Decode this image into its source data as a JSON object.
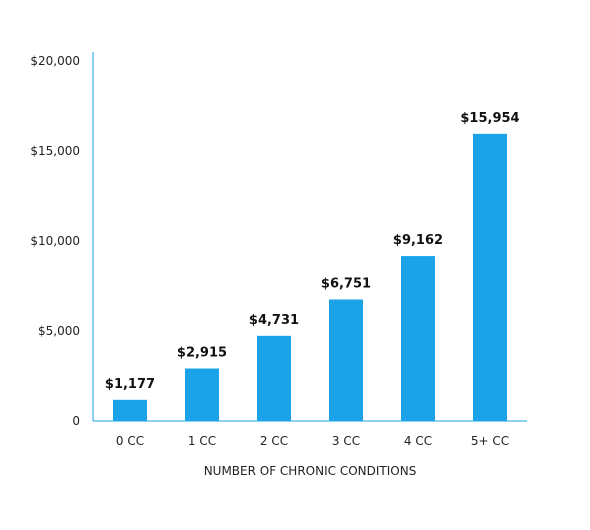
{
  "chart_data": {
    "type": "bar",
    "title": "",
    "xlabel": "NUMBER OF CHRONIC CONDITIONS",
    "ylabel": "",
    "categories": [
      "0 CC",
      "1 CC",
      "2 CC",
      "3 CC",
      "4 CC",
      "5+ CC"
    ],
    "values": [
      1177,
      2915,
      4731,
      6751,
      9162,
      15954
    ],
    "value_labels": [
      "$1,177",
      "$2,915",
      "$4,731",
      "$6,751",
      "$9,162",
      "$15,954"
    ],
    "yticks": [
      0,
      5000,
      10000,
      15000,
      20000
    ],
    "ytick_labels": [
      "0",
      "$5,000",
      "$10,000",
      "$15,000",
      "$20,000"
    ],
    "ylim": [
      0,
      20000
    ],
    "grid": false,
    "legend": "none",
    "colors": {
      "bar": "#1aa3e8",
      "axis": "#1aa3e8",
      "text": "#222222"
    }
  }
}
